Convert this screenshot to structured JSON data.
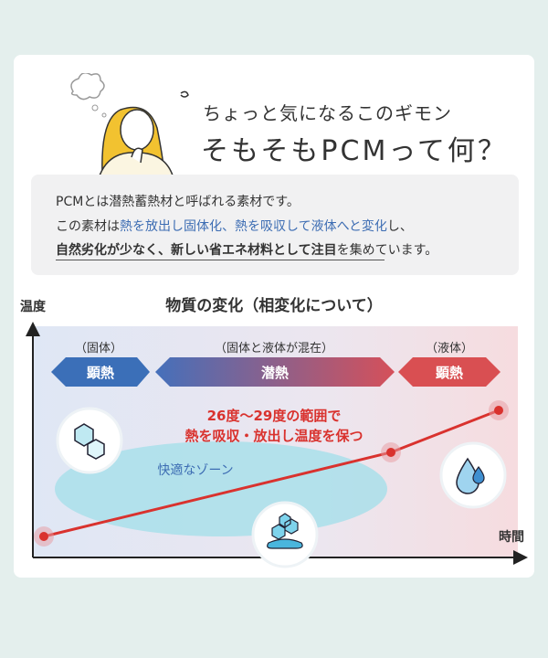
{
  "header": {
    "subtitle": "ちょっと気になるこのギモン",
    "title": "そもそもPCMって何？"
  },
  "info": {
    "line1": "PCMとは潜熱蓄熱材と呼ばれる素材です。",
    "line2_a": "この素材は",
    "line2_b": "熱を放出し固体化、熱を吸収して液体へと変化",
    "line2_c": "し、",
    "line3_a": "自然劣化が少なく、新しい省エネ材料として注目",
    "line3_b": "を集めています。"
  },
  "diagram": {
    "title": "物質の変化（相変化について）",
    "y_axis_label": "温度",
    "x_axis_label": "時間",
    "phases": [
      {
        "label": "（固体）",
        "arrow": "顕熱",
        "color": "#3b6fb8"
      },
      {
        "label": "（固体と液体が混在）",
        "arrow": "潜熱",
        "color": "#8a6fa0"
      },
      {
        "label": "（液体）",
        "arrow": "顕熱",
        "color": "#d94f52"
      }
    ],
    "note_line1": "26度〜29度の範囲で",
    "note_line2": "熱を吸収・放出し温度を保つ",
    "zone_label": "快適なゾーン",
    "icons": [
      "ice-cubes-icon",
      "melting-ice-icon",
      "water-drop-icon"
    ],
    "colors": {
      "line": "#d9322e",
      "zone": "#a9dfea",
      "solid": "#3b6fb8",
      "liquid": "#d94f52"
    }
  }
}
